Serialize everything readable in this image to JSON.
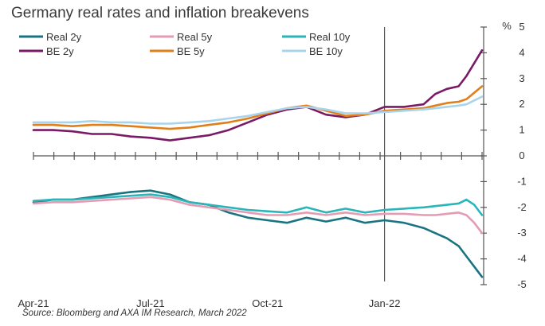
{
  "chart_data": {
    "type": "line",
    "title": "Germany real rates and inflation breakevens",
    "source": "Source: Bloomberg and AXA IM Research, March 2022",
    "ylabel": "%",
    "ylim": [
      -5,
      5
    ],
    "yticks": [
      "5",
      "4",
      "3",
      "2",
      "1",
      "0",
      "-1",
      "-2",
      "-3",
      "-4",
      "-5"
    ],
    "x_tick_labels": [
      "Apr-21",
      "Jul-21",
      "Oct-21",
      "Jan-22"
    ],
    "x_range_months": [
      0,
      11.5
    ],
    "x_label_months": [
      0,
      3,
      6,
      9
    ],
    "legend_position": "top-left",
    "grid": false,
    "series": [
      {
        "name": "Real 2y",
        "color": "#1a7480",
        "x": [
          0,
          0.5,
          1,
          1.5,
          2,
          2.5,
          3,
          3.5,
          4,
          4.5,
          5,
          5.5,
          6,
          6.5,
          7,
          7.5,
          8,
          8.5,
          9,
          9.5,
          10,
          10.3,
          10.6,
          10.9,
          11.1,
          11.3,
          11.5
        ],
        "values": [
          -1.8,
          -1.7,
          -1.7,
          -1.6,
          -1.5,
          -1.4,
          -1.35,
          -1.5,
          -1.8,
          -1.9,
          -2.2,
          -2.4,
          -2.5,
          -2.6,
          -2.4,
          -2.55,
          -2.4,
          -2.6,
          -2.5,
          -2.6,
          -2.8,
          -3.0,
          -3.2,
          -3.5,
          -3.9,
          -4.3,
          -4.7
        ]
      },
      {
        "name": "Real 5y",
        "color": "#e39cb4",
        "x": [
          0,
          0.5,
          1,
          1.5,
          2,
          2.5,
          3,
          3.5,
          4,
          4.5,
          5,
          5.5,
          6,
          6.5,
          7,
          7.5,
          8,
          8.5,
          9,
          9.5,
          10,
          10.3,
          10.6,
          10.9,
          11.1,
          11.3,
          11.5
        ],
        "values": [
          -1.85,
          -1.8,
          -1.8,
          -1.75,
          -1.7,
          -1.65,
          -1.6,
          -1.7,
          -1.9,
          -2.0,
          -2.1,
          -2.2,
          -2.3,
          -2.3,
          -2.2,
          -2.3,
          -2.2,
          -2.3,
          -2.25,
          -2.25,
          -2.3,
          -2.3,
          -2.25,
          -2.2,
          -2.3,
          -2.6,
          -3.0
        ]
      },
      {
        "name": "Real 10y",
        "color": "#2ab5b8",
        "x": [
          0,
          0.5,
          1,
          1.5,
          2,
          2.5,
          3,
          3.5,
          4,
          4.5,
          5,
          5.5,
          6,
          6.5,
          7,
          7.5,
          8,
          8.5,
          9,
          9.5,
          10,
          10.3,
          10.6,
          10.9,
          11.1,
          11.3,
          11.5
        ],
        "values": [
          -1.75,
          -1.7,
          -1.7,
          -1.65,
          -1.6,
          -1.55,
          -1.5,
          -1.6,
          -1.8,
          -1.9,
          -2.0,
          -2.1,
          -2.15,
          -2.2,
          -2.0,
          -2.2,
          -2.05,
          -2.2,
          -2.1,
          -2.05,
          -2.0,
          -1.95,
          -1.9,
          -1.85,
          -1.7,
          -1.9,
          -2.3
        ]
      },
      {
        "name": "BE 2y",
        "color": "#7a1a66",
        "x": [
          0,
          0.5,
          1,
          1.5,
          2,
          2.5,
          3,
          3.5,
          4,
          4.5,
          5,
          5.5,
          6,
          6.5,
          7,
          7.5,
          8,
          8.5,
          9,
          9.5,
          10,
          10.3,
          10.6,
          10.9,
          11.1,
          11.3,
          11.5
        ],
        "values": [
          1.0,
          1.0,
          0.95,
          0.85,
          0.85,
          0.75,
          0.7,
          0.6,
          0.7,
          0.8,
          1.0,
          1.3,
          1.6,
          1.8,
          1.9,
          1.6,
          1.5,
          1.6,
          1.9,
          1.9,
          2.0,
          2.4,
          2.6,
          2.7,
          3.1,
          3.6,
          4.1
        ]
      },
      {
        "name": "BE 5y",
        "color": "#e07f1a",
        "x": [
          0,
          0.5,
          1,
          1.5,
          2,
          2.5,
          3,
          3.5,
          4,
          4.5,
          5,
          5.5,
          6,
          6.5,
          7,
          7.5,
          8,
          8.5,
          9,
          9.5,
          10,
          10.3,
          10.6,
          10.9,
          11.1,
          11.3,
          11.5
        ],
        "values": [
          1.2,
          1.2,
          1.15,
          1.2,
          1.2,
          1.15,
          1.1,
          1.05,
          1.1,
          1.2,
          1.3,
          1.45,
          1.65,
          1.85,
          1.95,
          1.75,
          1.55,
          1.6,
          1.75,
          1.8,
          1.85,
          1.95,
          2.05,
          2.1,
          2.2,
          2.45,
          2.7
        ]
      },
      {
        "name": "BE 10y",
        "color": "#a8d4ec",
        "x": [
          0,
          0.5,
          1,
          1.5,
          2,
          2.5,
          3,
          3.5,
          4,
          4.5,
          5,
          5.5,
          6,
          6.5,
          7,
          7.5,
          8,
          8.5,
          9,
          9.5,
          10,
          10.3,
          10.6,
          10.9,
          11.1,
          11.3,
          11.5
        ],
        "values": [
          1.3,
          1.3,
          1.3,
          1.35,
          1.3,
          1.3,
          1.25,
          1.25,
          1.3,
          1.35,
          1.45,
          1.55,
          1.7,
          1.85,
          1.9,
          1.8,
          1.65,
          1.65,
          1.7,
          1.75,
          1.8,
          1.85,
          1.9,
          1.95,
          2.0,
          2.15,
          2.3
        ]
      }
    ]
  }
}
